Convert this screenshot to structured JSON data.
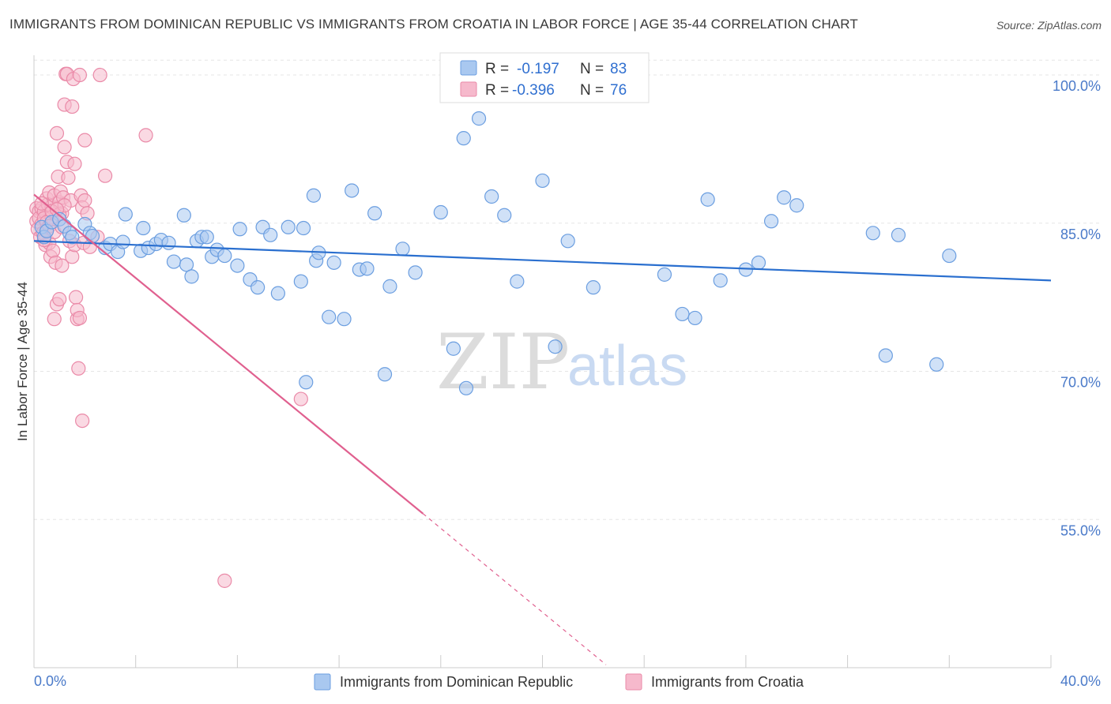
{
  "title": "IMMIGRANTS FROM DOMINICAN REPUBLIC VS IMMIGRANTS FROM CROATIA IN LABOR FORCE | AGE 35-44 CORRELATION CHART",
  "source": "Source: ZipAtlas.com",
  "watermark": {
    "zip": "ZIP",
    "atlas": "atlas"
  },
  "colors": {
    "blue_fill": "#a9c8f0",
    "blue_stroke": "#6b9ee0",
    "blue_line": "#2a6fcf",
    "pink_fill": "#f6b9cc",
    "pink_stroke": "#ea8aa8",
    "pink_line": "#e0608f",
    "grid": "#e6e6e6",
    "tick_text": "#4a7ac9"
  },
  "legend": {
    "rows": [
      {
        "r_label": "R =",
        "r_value": "-0.197",
        "n_label": "N =",
        "n_value": "83"
      },
      {
        "r_label": "R =",
        "r_value": "-0.396",
        "n_label": "N =",
        "n_value": "76"
      }
    ]
  },
  "chart_data": {
    "type": "scatter",
    "title": "IMMIGRANTS FROM DOMINICAN REPUBLIC VS IMMIGRANTS FROM CROATIA IN LABOR FORCE | AGE 35-44 CORRELATION CHART",
    "xlabel": "",
    "ylabel": "In Labor Force | Age 35-44",
    "xlim": [
      0,
      40
    ],
    "ylim": [
      40,
      102
    ],
    "x_tick_labels": [
      "0.0%",
      "40.0%"
    ],
    "y_ticks": [
      55,
      70,
      85,
      100
    ],
    "y_tick_labels": [
      "55.0%",
      "70.0%",
      "85.0%",
      "100.0%"
    ],
    "grid": true,
    "legend_placement": "top-center",
    "series": [
      {
        "name": "Immigrants from Dominican Republic",
        "color": "#a9c8f0",
        "trend": {
          "x": [
            0,
            40
          ],
          "y": [
            83.2,
            79.2
          ],
          "dashed_from": null
        },
        "points": [
          [
            0.3,
            84.6
          ],
          [
            0.4,
            83.6
          ],
          [
            0.5,
            84.2
          ],
          [
            0.7,
            85.1
          ],
          [
            1.0,
            85.4
          ],
          [
            1.2,
            84.7
          ],
          [
            1.4,
            84.0
          ],
          [
            1.5,
            83.6
          ],
          [
            2.0,
            84.9
          ],
          [
            2.2,
            84.0
          ],
          [
            2.3,
            83.7
          ],
          [
            2.8,
            82.5
          ],
          [
            3.0,
            82.9
          ],
          [
            3.3,
            82.1
          ],
          [
            3.5,
            83.1
          ],
          [
            3.6,
            85.9
          ],
          [
            4.2,
            82.2
          ],
          [
            4.3,
            84.5
          ],
          [
            4.5,
            82.5
          ],
          [
            4.8,
            82.9
          ],
          [
            5.0,
            83.3
          ],
          [
            5.3,
            83.0
          ],
          [
            5.5,
            81.1
          ],
          [
            5.9,
            85.8
          ],
          [
            6.0,
            80.8
          ],
          [
            6.2,
            79.6
          ],
          [
            6.4,
            83.2
          ],
          [
            6.6,
            83.6
          ],
          [
            6.8,
            83.6
          ],
          [
            7.0,
            81.6
          ],
          [
            7.2,
            82.3
          ],
          [
            7.5,
            81.7
          ],
          [
            8.0,
            80.7
          ],
          [
            8.1,
            84.4
          ],
          [
            8.5,
            79.3
          ],
          [
            8.8,
            78.5
          ],
          [
            9.0,
            84.6
          ],
          [
            9.3,
            83.8
          ],
          [
            9.6,
            77.9
          ],
          [
            10.0,
            84.6
          ],
          [
            10.5,
            79.1
          ],
          [
            10.6,
            84.5
          ],
          [
            10.7,
            68.9
          ],
          [
            11.0,
            87.8
          ],
          [
            11.1,
            81.2
          ],
          [
            11.2,
            82.0
          ],
          [
            11.6,
            75.5
          ],
          [
            11.8,
            81.0
          ],
          [
            12.2,
            75.3
          ],
          [
            12.5,
            88.3
          ],
          [
            12.8,
            80.3
          ],
          [
            13.1,
            80.4
          ],
          [
            13.4,
            86.0
          ],
          [
            13.8,
            69.7
          ],
          [
            14.0,
            78.6
          ],
          [
            14.5,
            82.4
          ],
          [
            15.0,
            80.0
          ],
          [
            16.0,
            86.1
          ],
          [
            16.5,
            72.3
          ],
          [
            16.9,
            93.6
          ],
          [
            17.0,
            68.3
          ],
          [
            17.5,
            95.6
          ],
          [
            18.0,
            87.7
          ],
          [
            18.5,
            85.8
          ],
          [
            19.0,
            79.1
          ],
          [
            20.0,
            89.3
          ],
          [
            20.5,
            72.5
          ],
          [
            21.0,
            83.2
          ],
          [
            22.0,
            78.5
          ],
          [
            24.8,
            79.8
          ],
          [
            25.5,
            75.8
          ],
          [
            26.0,
            75.4
          ],
          [
            26.5,
            87.4
          ],
          [
            27.0,
            79.2
          ],
          [
            28.0,
            80.3
          ],
          [
            28.5,
            81.0
          ],
          [
            29.0,
            85.2
          ],
          [
            29.5,
            87.6
          ],
          [
            30.0,
            86.8
          ],
          [
            33.0,
            84.0
          ],
          [
            33.5,
            71.6
          ],
          [
            34.0,
            83.8
          ],
          [
            35.5,
            70.7
          ],
          [
            36.0,
            81.7
          ]
        ]
      },
      {
        "name": "Immigrants from Croatia",
        "color": "#f6b9cc",
        "trend": {
          "x": [
            0,
            15.3,
            22.5
          ],
          "y": [
            87.9,
            55.6,
            40.3
          ],
          "dashed_from": 15.3
        },
        "points": [
          [
            0.1,
            86.5
          ],
          [
            0.1,
            85.2
          ],
          [
            0.15,
            84.4
          ],
          [
            0.2,
            86.2
          ],
          [
            0.2,
            85.5
          ],
          [
            0.25,
            83.6
          ],
          [
            0.3,
            86.5
          ],
          [
            0.3,
            84.9
          ],
          [
            0.35,
            84.0
          ],
          [
            0.4,
            86.2
          ],
          [
            0.4,
            85.5
          ],
          [
            0.45,
            82.8
          ],
          [
            0.5,
            87.5
          ],
          [
            0.5,
            84.3
          ],
          [
            0.55,
            86.9
          ],
          [
            0.6,
            83.0
          ],
          [
            0.6,
            88.1
          ],
          [
            0.65,
            81.6
          ],
          [
            0.7,
            86.7
          ],
          [
            0.7,
            85.6
          ],
          [
            0.75,
            82.2
          ],
          [
            0.8,
            87.8
          ],
          [
            0.8,
            75.3
          ],
          [
            0.85,
            81.0
          ],
          [
            0.9,
            94.1
          ],
          [
            0.9,
            76.8
          ],
          [
            0.95,
            89.7
          ],
          [
            1.0,
            87.1
          ],
          [
            1.0,
            77.3
          ],
          [
            1.05,
            88.2
          ],
          [
            1.1,
            86.0
          ],
          [
            1.1,
            80.7
          ],
          [
            1.15,
            87.6
          ],
          [
            1.2,
            97.0
          ],
          [
            1.2,
            92.7
          ],
          [
            1.25,
            100.1
          ],
          [
            1.3,
            91.2
          ],
          [
            1.3,
            100.1
          ],
          [
            1.35,
            89.6
          ],
          [
            1.4,
            83.2
          ],
          [
            1.45,
            87.3
          ],
          [
            1.5,
            96.8
          ],
          [
            1.5,
            81.6
          ],
          [
            1.55,
            99.6
          ],
          [
            1.6,
            82.8
          ],
          [
            1.6,
            91.0
          ],
          [
            1.65,
            77.5
          ],
          [
            1.7,
            75.3
          ],
          [
            1.7,
            76.2
          ],
          [
            1.75,
            70.3
          ],
          [
            1.8,
            100.0
          ],
          [
            1.8,
            75.4
          ],
          [
            1.85,
            87.8
          ],
          [
            1.9,
            86.6
          ],
          [
            1.9,
            65.0
          ],
          [
            1.95,
            83.0
          ],
          [
            2.0,
            93.4
          ],
          [
            2.0,
            87.3
          ],
          [
            2.1,
            86.0
          ],
          [
            2.2,
            82.6
          ],
          [
            2.5,
            83.6
          ],
          [
            2.6,
            100.0
          ],
          [
            2.8,
            89.8
          ],
          [
            4.4,
            93.9
          ],
          [
            7.5,
            48.8
          ],
          [
            10.5,
            67.2
          ],
          [
            0.5,
            85.1
          ],
          [
            0.6,
            84.7
          ],
          [
            0.7,
            86.2
          ],
          [
            0.8,
            84.1
          ],
          [
            1.0,
            85.9
          ],
          [
            1.2,
            86.8
          ],
          [
            0.4,
            83.3
          ],
          [
            0.3,
            87.0
          ],
          [
            0.9,
            86.4
          ],
          [
            1.1,
            84.6
          ]
        ]
      }
    ]
  }
}
